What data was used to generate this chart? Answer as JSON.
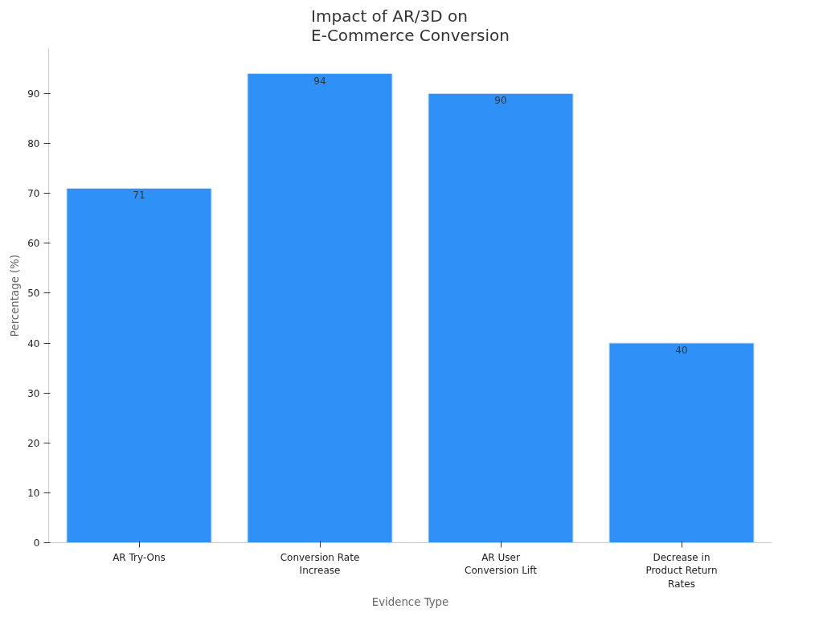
{
  "chart_data": {
    "type": "bar",
    "title": "Impact of AR/3D on\nE-Commerce Conversion",
    "xlabel": "Evidence Type",
    "ylabel": "Percentage (%)",
    "categories": [
      "AR Try-Ons",
      "Conversion Rate\nIncrease",
      "AR User\nConversion Lift",
      "Decrease in\nProduct Return\nRates"
    ],
    "values": [
      71,
      94,
      90,
      40
    ],
    "color": "#2f91f7",
    "ylim": [
      0,
      99
    ],
    "yticks": [
      0,
      10,
      20,
      30,
      40,
      50,
      60,
      70,
      80,
      90
    ],
    "grid": false,
    "data_labels": true
  }
}
